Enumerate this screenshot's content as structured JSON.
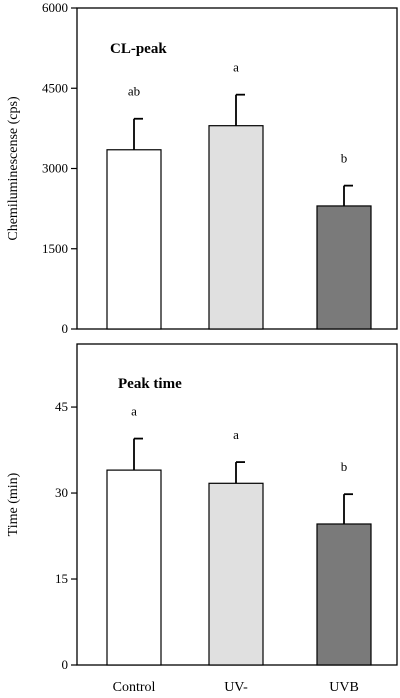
{
  "chart_data": [
    {
      "type": "bar",
      "title": "CL-peak",
      "ylabel": "Chemiluminescense (cps)",
      "categories": [
        "Control",
        "UV-",
        "UVB"
      ],
      "values": [
        3350,
        3800,
        2300
      ],
      "errors": [
        580,
        580,
        380
      ],
      "significance": [
        "ab",
        "a",
        "b"
      ],
      "yticks": [
        0,
        1500,
        3000,
        4500,
        6000
      ],
      "ylim": [
        0,
        6000
      ],
      "colors": [
        "#ffffff",
        "#e0e0e0",
        "#7a7a7a"
      ],
      "grid": false
    },
    {
      "type": "bar",
      "title": "Peak time",
      "ylabel": "Time (min)",
      "categories": [
        "Control",
        "UV-",
        "UVB"
      ],
      "values": [
        34,
        31.7,
        24.6
      ],
      "errors": [
        5.5,
        3.7,
        5.2
      ],
      "significance": [
        "a",
        "a",
        "b"
      ],
      "yticks": [
        0,
        15,
        30,
        45
      ],
      "ylim": [
        0,
        56
      ],
      "colors": [
        "#ffffff",
        "#e0e0e0",
        "#7a7a7a"
      ],
      "grid": false
    }
  ],
  "xcategories": [
    "Control",
    "UV-",
    "UVB"
  ]
}
